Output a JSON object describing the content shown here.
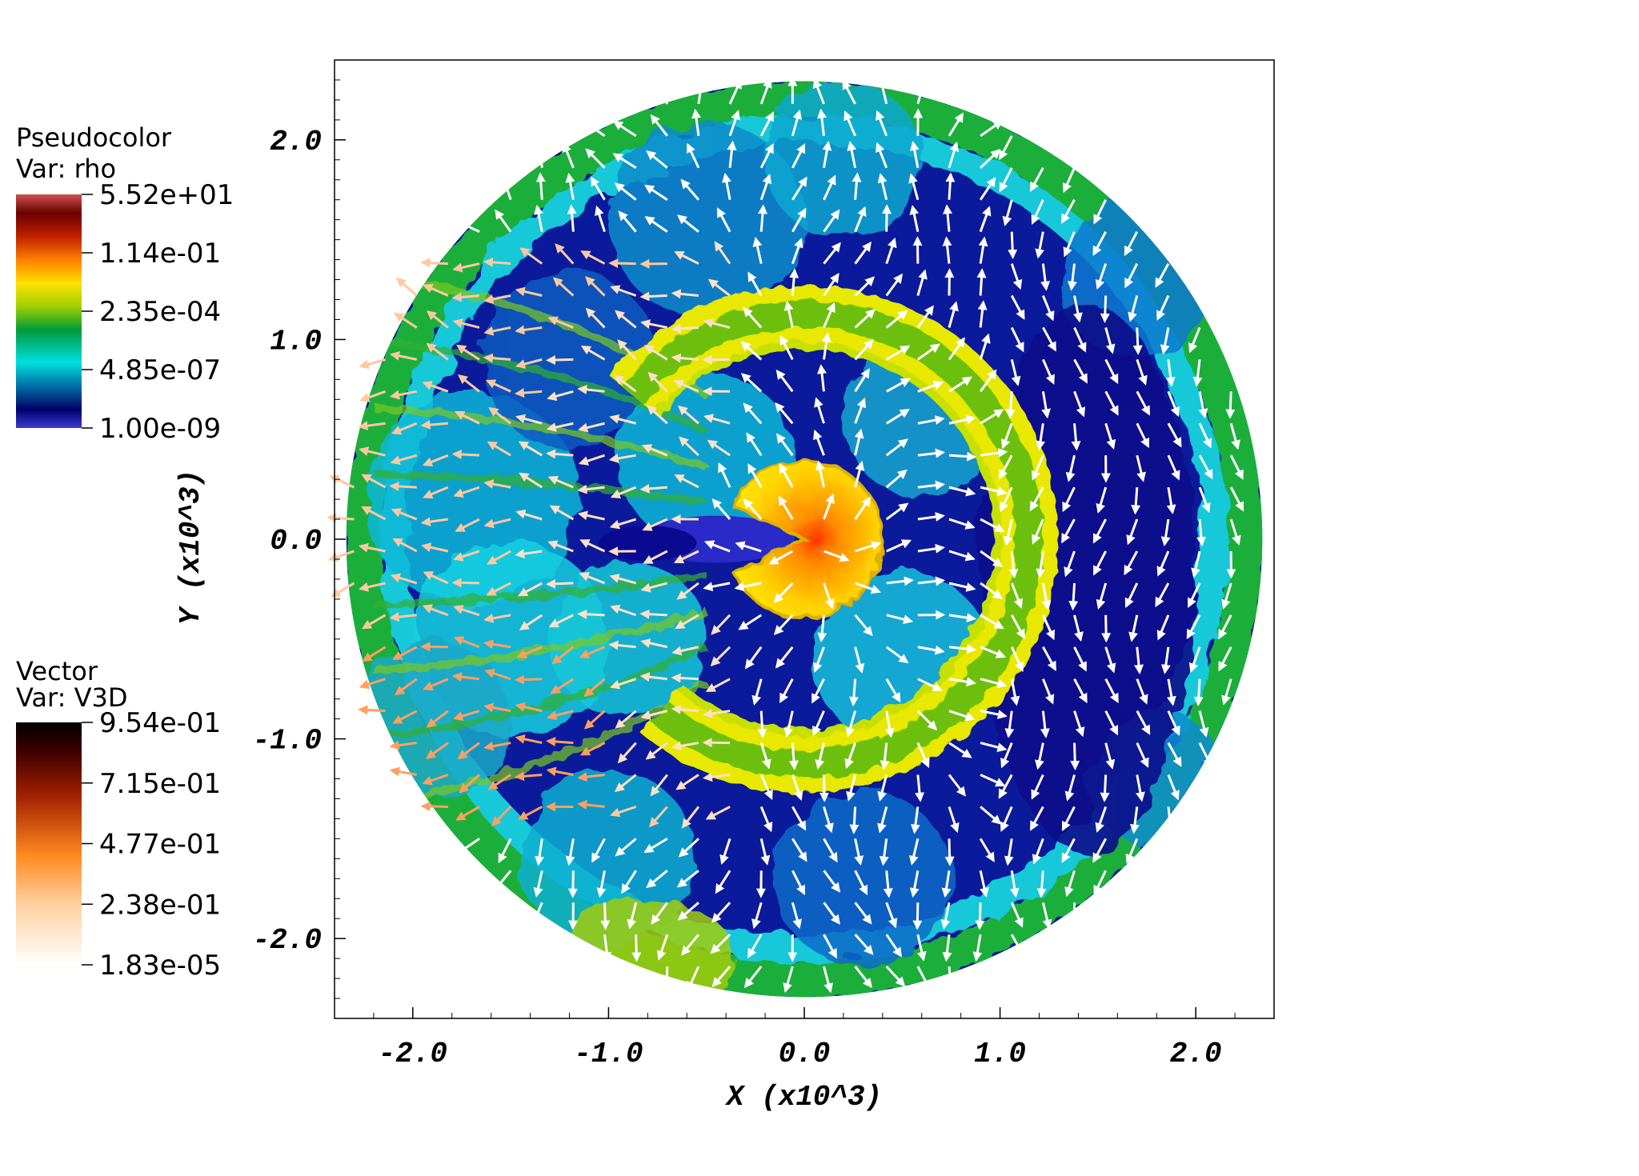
{
  "legend_rho": {
    "title": "Pseudocolor",
    "var_label": "Var: rho",
    "ticks": [
      "5.52e+01",
      "1.14e-01",
      "2.35e-04",
      "4.85e-07",
      "1.00e-09"
    ]
  },
  "legend_vec": {
    "title": "Vector",
    "var_label": "Var: V3D",
    "ticks": [
      "9.54e-01",
      "7.15e-01",
      "4.77e-01",
      "2.38e-01",
      "1.83e-05"
    ]
  },
  "colors": {
    "rho_colormap": [
      "#3b3bd0",
      "#00006a",
      "#00e0e0",
      "#009a3a",
      "#a0d000",
      "#ffe000",
      "#ff8000",
      "#c02000",
      "#6a0000",
      "#d05050"
    ],
    "vector_colormap": [
      "#ffffff",
      "#ffd0a0",
      "#ff8a20",
      "#a02000",
      "#400000",
      "#000000"
    ],
    "frame": "#000000"
  },
  "chart_data": {
    "type": "heatmap",
    "xlabel": "X (x10^3)",
    "ylabel": "Y (x10^3)",
    "xlim": [
      -2.4,
      2.4
    ],
    "ylim": [
      -2.4,
      2.4
    ],
    "x_ticks": [
      "-2.0",
      "-1.0",
      "0.0",
      "1.0",
      "2.0"
    ],
    "y_ticks": [
      "2.0",
      "1.0",
      "0.0",
      "-1.0",
      "-2.0"
    ],
    "x_tick_values": [
      -2.0,
      -1.0,
      0.0,
      1.0,
      2.0
    ],
    "y_tick_values": [
      2.0,
      1.0,
      0.0,
      -1.0,
      -2.0
    ],
    "domain_radius": 2.4,
    "shock_shell_radius": 1.15,
    "core_radius": 0.4
  }
}
